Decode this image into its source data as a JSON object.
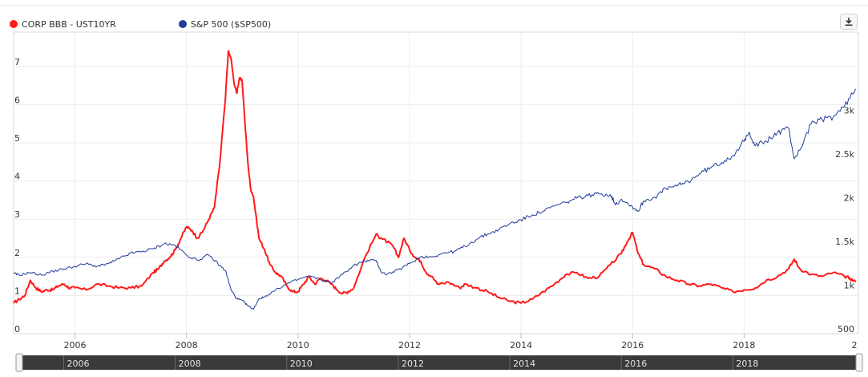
{
  "legend": {
    "series1": {
      "label": "CORP BBB - UST10YR",
      "color": "#ff1a1a"
    },
    "series2": {
      "label": "S&P 500 ($SP500)",
      "color": "#1f3c99"
    }
  },
  "toolbar": {
    "download_icon": "download-icon"
  },
  "chart_data": {
    "type": "line",
    "title": "",
    "xlabel": "",
    "ylabel": "",
    "grid": true,
    "legend_position": "top-left",
    "x_axis": {
      "min": 2004.9,
      "max": 2020.05,
      "ticks": [
        "2006",
        "2008",
        "2010",
        "2012",
        "2014",
        "2016",
        "2018",
        "2"
      ]
    },
    "y_left": {
      "min": 0,
      "max": 7.9,
      "ticks": [
        "0",
        "1",
        "2",
        "3",
        "4",
        "5",
        "6",
        "7"
      ]
    },
    "y_right": {
      "min": 500,
      "max": 3950,
      "ticks": [
        "500",
        "1k",
        "1.5k",
        "2k",
        "2.5k",
        "3k"
      ]
    },
    "series": [
      {
        "name": "CORP BBB - UST10YR",
        "axis": "left",
        "color": "#ff1a1a",
        "x": [
          2004.9,
          2005.0,
          2005.1,
          2005.2,
          2005.3,
          2005.4,
          2005.5,
          2005.6,
          2005.7,
          2005.8,
          2005.9,
          2006.0,
          2006.2,
          2006.4,
          2006.6,
          2006.8,
          2007.0,
          2007.2,
          2007.4,
          2007.5,
          2007.6,
          2007.7,
          2007.8,
          2007.9,
          2008.0,
          2008.1,
          2008.2,
          2008.3,
          2008.4,
          2008.5,
          2008.6,
          2008.7,
          2008.75,
          2008.8,
          2008.85,
          2008.9,
          2008.95,
          2009.0,
          2009.05,
          2009.1,
          2009.15,
          2009.2,
          2009.3,
          2009.4,
          2009.5,
          2009.6,
          2009.7,
          2009.8,
          2009.9,
          2010.0,
          2010.1,
          2010.2,
          2010.3,
          2010.4,
          2010.5,
          2010.6,
          2010.7,
          2010.8,
          2010.9,
          2011.0,
          2011.2,
          2011.4,
          2011.5,
          2011.6,
          2011.7,
          2011.8,
          2011.9,
          2012.0,
          2012.1,
          2012.2,
          2012.3,
          2012.4,
          2012.5,
          2012.7,
          2012.9,
          2013.0,
          2013.2,
          2013.4,
          2013.6,
          2013.8,
          2014.0,
          2014.2,
          2014.4,
          2014.6,
          2014.8,
          2015.0,
          2015.2,
          2015.4,
          2015.6,
          2015.8,
          2015.9,
          2016.0,
          2016.1,
          2016.2,
          2016.4,
          2016.6,
          2016.8,
          2017.0,
          2017.2,
          2017.4,
          2017.6,
          2017.8,
          2018.0,
          2018.2,
          2018.4,
          2018.6,
          2018.8,
          2018.9,
          2019.0,
          2019.2,
          2019.4,
          2019.6,
          2019.8,
          2019.9,
          2020.0
        ],
        "values": [
          0.8,
          0.9,
          1.0,
          1.4,
          1.2,
          1.1,
          1.15,
          1.15,
          1.25,
          1.3,
          1.2,
          1.2,
          1.15,
          1.3,
          1.25,
          1.2,
          1.2,
          1.25,
          1.6,
          1.7,
          1.9,
          2.0,
          2.2,
          2.5,
          2.8,
          2.7,
          2.5,
          2.7,
          3.0,
          3.3,
          4.5,
          6.2,
          7.4,
          7.2,
          6.6,
          6.3,
          6.7,
          6.6,
          5.5,
          4.5,
          3.8,
          3.6,
          2.5,
          2.2,
          1.8,
          1.6,
          1.5,
          1.25,
          1.1,
          1.1,
          1.3,
          1.5,
          1.3,
          1.45,
          1.4,
          1.3,
          1.15,
          1.05,
          1.1,
          1.2,
          2.0,
          2.6,
          2.5,
          2.4,
          2.3,
          2.0,
          2.5,
          2.2,
          2.0,
          1.9,
          1.6,
          1.5,
          1.3,
          1.35,
          1.2,
          1.3,
          1.2,
          1.1,
          0.95,
          0.85,
          0.8,
          0.9,
          1.1,
          1.3,
          1.55,
          1.6,
          1.45,
          1.5,
          1.8,
          2.1,
          2.4,
          2.65,
          2.1,
          1.8,
          1.7,
          1.5,
          1.4,
          1.3,
          1.25,
          1.3,
          1.2,
          1.1,
          1.15,
          1.2,
          1.4,
          1.5,
          1.7,
          1.95,
          1.7,
          1.55,
          1.5,
          1.6,
          1.5,
          1.45,
          1.35
        ]
      },
      {
        "name": "S&P 500 ($SP500)",
        "axis": "right",
        "color": "#1f3c99",
        "x": [
          2004.9,
          2005.0,
          2005.2,
          2005.4,
          2005.6,
          2005.8,
          2006.0,
          2006.2,
          2006.4,
          2006.6,
          2006.8,
          2007.0,
          2007.2,
          2007.4,
          2007.6,
          2007.8,
          2008.0,
          2008.2,
          2008.4,
          2008.6,
          2008.7,
          2008.8,
          2008.9,
          2009.0,
          2009.1,
          2009.2,
          2009.3,
          2009.4,
          2009.6,
          2009.8,
          2010.0,
          2010.2,
          2010.4,
          2010.6,
          2010.8,
          2011.0,
          2011.2,
          2011.4,
          2011.5,
          2011.6,
          2011.8,
          2012.0,
          2012.2,
          2012.4,
          2012.6,
          2012.8,
          2013.0,
          2013.2,
          2013.4,
          2013.6,
          2013.8,
          2014.0,
          2014.2,
          2014.4,
          2014.6,
          2014.8,
          2015.0,
          2015.2,
          2015.4,
          2015.6,
          2015.7,
          2015.8,
          2016.0,
          2016.1,
          2016.2,
          2016.4,
          2016.6,
          2016.8,
          2017.0,
          2017.2,
          2017.4,
          2017.6,
          2017.8,
          2018.0,
          2018.1,
          2018.2,
          2018.4,
          2018.6,
          2018.8,
          2018.9,
          2019.0,
          2019.2,
          2019.4,
          2019.6,
          2019.8,
          2020.0
        ],
        "values": [
          1190,
          1170,
          1200,
          1170,
          1215,
          1240,
          1270,
          1300,
          1270,
          1300,
          1360,
          1420,
          1440,
          1470,
          1530,
          1510,
          1400,
          1340,
          1400,
          1280,
          1220,
          1000,
          900,
          880,
          820,
          780,
          900,
          920,
          1000,
          1070,
          1120,
          1160,
          1120,
          1080,
          1180,
          1280,
          1330,
          1340,
          1200,
          1180,
          1230,
          1300,
          1380,
          1380,
          1420,
          1440,
          1500,
          1580,
          1640,
          1690,
          1760,
          1800,
          1860,
          1900,
          1960,
          2000,
          2050,
          2080,
          2100,
          2090,
          1980,
          2040,
          1950,
          1900,
          2020,
          2060,
          2160,
          2190,
          2240,
          2330,
          2400,
          2460,
          2540,
          2700,
          2800,
          2650,
          2700,
          2800,
          2850,
          2500,
          2600,
          2900,
          2950,
          2980,
          3100,
          3300
        ]
      }
    ]
  },
  "navigator": {
    "labels": [
      "2006",
      "2008",
      "2010",
      "2012",
      "2014",
      "2016",
      "2018"
    ]
  }
}
